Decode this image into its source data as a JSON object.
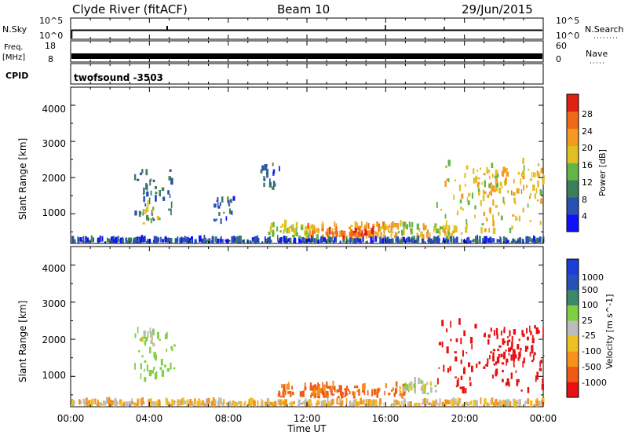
{
  "header": {
    "title": "Clyde River (fitACF)",
    "beam": "Beam 10",
    "date": "29/Jun/2015"
  },
  "strips": {
    "nsky_label": "N.Sky",
    "nsky_ticks": [
      "10^5",
      "10^0"
    ],
    "nsearch_label": "N.Search",
    "nsearch_ticks": [
      "10^5",
      "10^0"
    ],
    "freq_label_line1": "Freq.",
    "freq_label_line2": "[MHz]",
    "freq_ticks": [
      "18",
      "8"
    ],
    "nave_label": "Nave",
    "nave_ticks": [
      "60",
      "0"
    ],
    "cpid_label": "CPID",
    "cpid_value": "twofsound -3503"
  },
  "colors": {
    "power": [
      "#1010ff",
      "#2a50b0",
      "#3c7d5a",
      "#62b548",
      "#e0c020",
      "#f59a20",
      "#ee6a18",
      "#e02010"
    ],
    "velocity": [
      "#e81010",
      "#f05a16",
      "#f5921c",
      "#f0c020",
      "#bcbcbc",
      "#7fd040",
      "#3a8a6a",
      "#2a50b8",
      "#1a3fd6"
    ]
  },
  "chart_data": [
    {
      "type": "heatmap",
      "name": "power-panel",
      "ylabel": "Slant Range [km]",
      "xlabel": "",
      "x_ticks": [
        "00:00",
        "04:00",
        "08:00",
        "12:00",
        "16:00",
        "20:00",
        "00:00"
      ],
      "y_ticks": [
        "1000",
        "2000",
        "3000",
        "4000"
      ],
      "ylim": [
        180,
        4500
      ],
      "colorbar": {
        "label": "Power [dB]",
        "ticks": [
          "4",
          "8",
          "12",
          "16",
          "20",
          "24",
          "28"
        ],
        "range": [
          0,
          32
        ]
      },
      "regions": [
        {
          "t": [
            0,
            24
          ],
          "r": [
            180,
            230
          ],
          "value": 6
        },
        {
          "t": [
            3.2,
            5.3
          ],
          "r": [
            700,
            2200
          ],
          "value": 8
        },
        {
          "t": [
            3.6,
            4.4
          ],
          "r": [
            700,
            1200
          ],
          "value": 14
        },
        {
          "t": [
            7.2,
            8.4
          ],
          "r": [
            700,
            1400
          ],
          "value": 6
        },
        {
          "t": [
            9.6,
            10.6
          ],
          "r": [
            1600,
            2400
          ],
          "value": 6
        },
        {
          "t": [
            10.0,
            12.5
          ],
          "r": [
            300,
            650
          ],
          "value": 16
        },
        {
          "t": [
            12.0,
            16.5
          ],
          "r": [
            300,
            650
          ],
          "value": 22
        },
        {
          "t": [
            13.0,
            15.5
          ],
          "r": [
            300,
            500
          ],
          "value": 27
        },
        {
          "t": [
            15.5,
            19.5
          ],
          "r": [
            300,
            650
          ],
          "value": 18
        },
        {
          "t": [
            18.5,
            24
          ],
          "r": [
            400,
            2400
          ],
          "value": 18
        },
        {
          "t": [
            20.5,
            24
          ],
          "r": [
            1200,
            2200
          ],
          "value": 20
        }
      ]
    },
    {
      "type": "heatmap",
      "name": "velocity-panel",
      "ylabel": "Slant Range [km]",
      "xlabel": "Time UT",
      "x_ticks": [
        "00:00",
        "04:00",
        "08:00",
        "12:00",
        "16:00",
        "20:00",
        "00:00"
      ],
      "y_ticks": [
        "1000",
        "2000",
        "3000",
        "4000"
      ],
      "ylim": [
        180,
        4500
      ],
      "colorbar": {
        "label": "Velocity [m s^-1]",
        "ticks": [
          "1000",
          "500",
          "100",
          "25",
          "-25",
          "-100",
          "-500",
          "-1000"
        ],
        "range": [
          -1000,
          1000
        ]
      },
      "regions": [
        {
          "t": [
            0,
            24
          ],
          "r": [
            180,
            260
          ],
          "value": 0
        },
        {
          "t": [
            3.2,
            5.3
          ],
          "r": [
            700,
            2200
          ],
          "value": 300
        },
        {
          "t": [
            3.6,
            4.4
          ],
          "r": [
            1800,
            2200
          ],
          "value": 80
        },
        {
          "t": [
            10.5,
            13.0
          ],
          "r": [
            400,
            700
          ],
          "value": -150
        },
        {
          "t": [
            12.0,
            17.0
          ],
          "r": [
            400,
            700
          ],
          "value": -140
        },
        {
          "t": [
            16.5,
            18.5
          ],
          "r": [
            500,
            800
          ],
          "value": 60
        },
        {
          "t": [
            18.5,
            24
          ],
          "r": [
            500,
            2400
          ],
          "value": -700
        },
        {
          "t": [
            21.0,
            24
          ],
          "r": [
            1200,
            2200
          ],
          "value": -900
        }
      ]
    }
  ]
}
